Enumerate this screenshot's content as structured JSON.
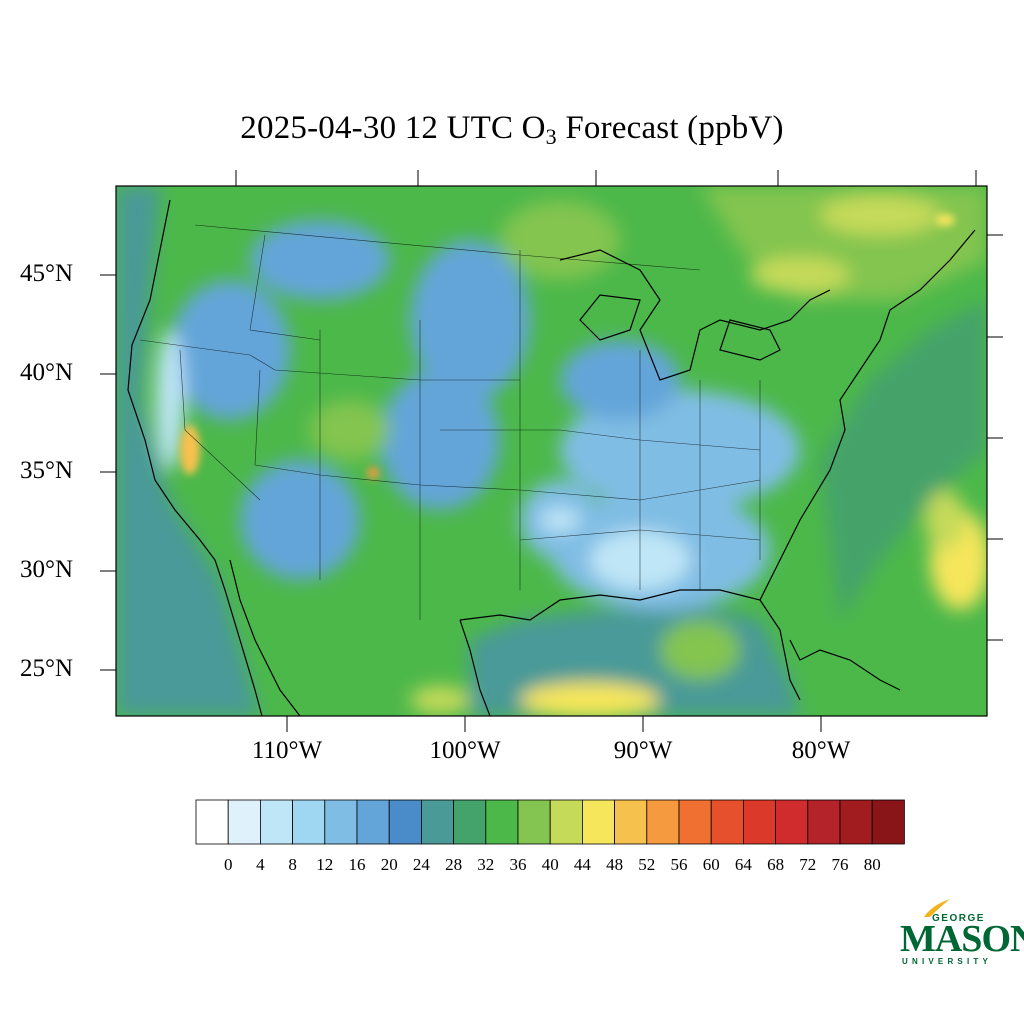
{
  "title": {
    "prefix": "2025-04-30 12 UTC O",
    "subscript": "3",
    "suffix": " Forecast (ppbV)"
  },
  "map": {
    "lat_labels": [
      "45°N",
      "40°N",
      "35°N",
      "30°N",
      "25°N"
    ],
    "lon_labels": [
      "110°W",
      "100°W",
      "90°W",
      "80°W"
    ]
  },
  "colorbar": {
    "labels": [
      "0",
      "4",
      "8",
      "12",
      "16",
      "20",
      "24",
      "28",
      "32",
      "36",
      "40",
      "44",
      "48",
      "52",
      "56",
      "60",
      "64",
      "68",
      "72",
      "76",
      "80"
    ],
    "colors": [
      "#ffffff",
      "#dff1fa",
      "#bfe6f7",
      "#9fd7f2",
      "#80bde4",
      "#63a5d9",
      "#4a8cc9",
      "#4a9a98",
      "#44a36b",
      "#4cb84a",
      "#83c550",
      "#c6da5a",
      "#f6e65c",
      "#f7c14e",
      "#f59a3f",
      "#f07032",
      "#e6502d",
      "#db3a2b",
      "#d02c2e",
      "#b5232a",
      "#a01c1f",
      "#8a1519"
    ]
  },
  "logo": {
    "george": "GEORGE",
    "mason": "MASON",
    "university": "UNIVERSITY"
  }
}
